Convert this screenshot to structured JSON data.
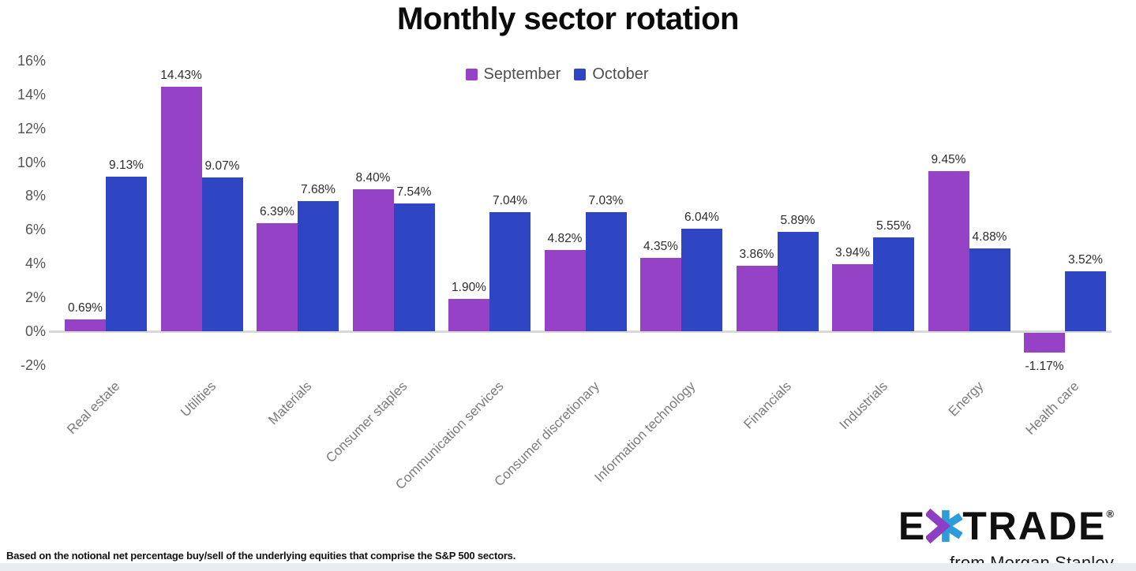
{
  "chart_data": {
    "type": "bar",
    "title": "Monthly sector rotation",
    "categories": [
      "Real estate",
      "Utilities",
      "Materials",
      "Consumer staples",
      "Communication services",
      "Consumer discretionary",
      "Information technology",
      "Financials",
      "Industrials",
      "Energy",
      "Health care"
    ],
    "series": [
      {
        "name": "September",
        "color": "#9542c6",
        "values": [
          0.69,
          14.43,
          6.39,
          8.4,
          1.9,
          4.82,
          4.35,
          3.86,
          3.94,
          9.45,
          -1.17
        ],
        "labels": [
          "0.69%",
          "14.43%",
          "6.39%",
          "8.40%",
          "1.90%",
          "4.82%",
          "4.35%",
          "3.86%",
          "3.94%",
          "9.45%",
          "-1.17%"
        ]
      },
      {
        "name": "October",
        "color": "#2f46c4",
        "values": [
          9.13,
          9.07,
          7.68,
          7.54,
          7.04,
          7.03,
          6.04,
          5.89,
          5.55,
          4.88,
          3.52
        ],
        "labels": [
          "9.13%",
          "9.07%",
          "7.68%",
          "7.54%",
          "7.04%",
          "7.03%",
          "6.04%",
          "5.89%",
          "5.55%",
          "4.88%",
          "3.52%"
        ]
      }
    ],
    "y_ticks": [
      {
        "value": 16,
        "label": "16%"
      },
      {
        "value": 14,
        "label": "14%"
      },
      {
        "value": 12,
        "label": "12%"
      },
      {
        "value": 10,
        "label": "10%"
      },
      {
        "value": 8,
        "label": "8%"
      },
      {
        "value": 6,
        "label": "6%"
      },
      {
        "value": 4,
        "label": "4%"
      },
      {
        "value": 2,
        "label": "2%"
      },
      {
        "value": 0,
        "label": "0%"
      },
      {
        "value": -2,
        "label": "-2%"
      }
    ],
    "ylim": [
      -2,
      16
    ],
    "grid": false,
    "legend_position": "top-center",
    "xlabel": "",
    "ylabel": ""
  },
  "footer": {
    "note": "Based on the notional net percentage buy/sell of the underlying equities that comprise the S&P 500 sectors."
  },
  "brand": {
    "name_left": "E",
    "name_right": "TRADE",
    "registered": "®",
    "tagline": "from Morgan Stanley",
    "asterisk_purple": "#8e3ec2",
    "asterisk_blue": "#2d9cdb"
  }
}
